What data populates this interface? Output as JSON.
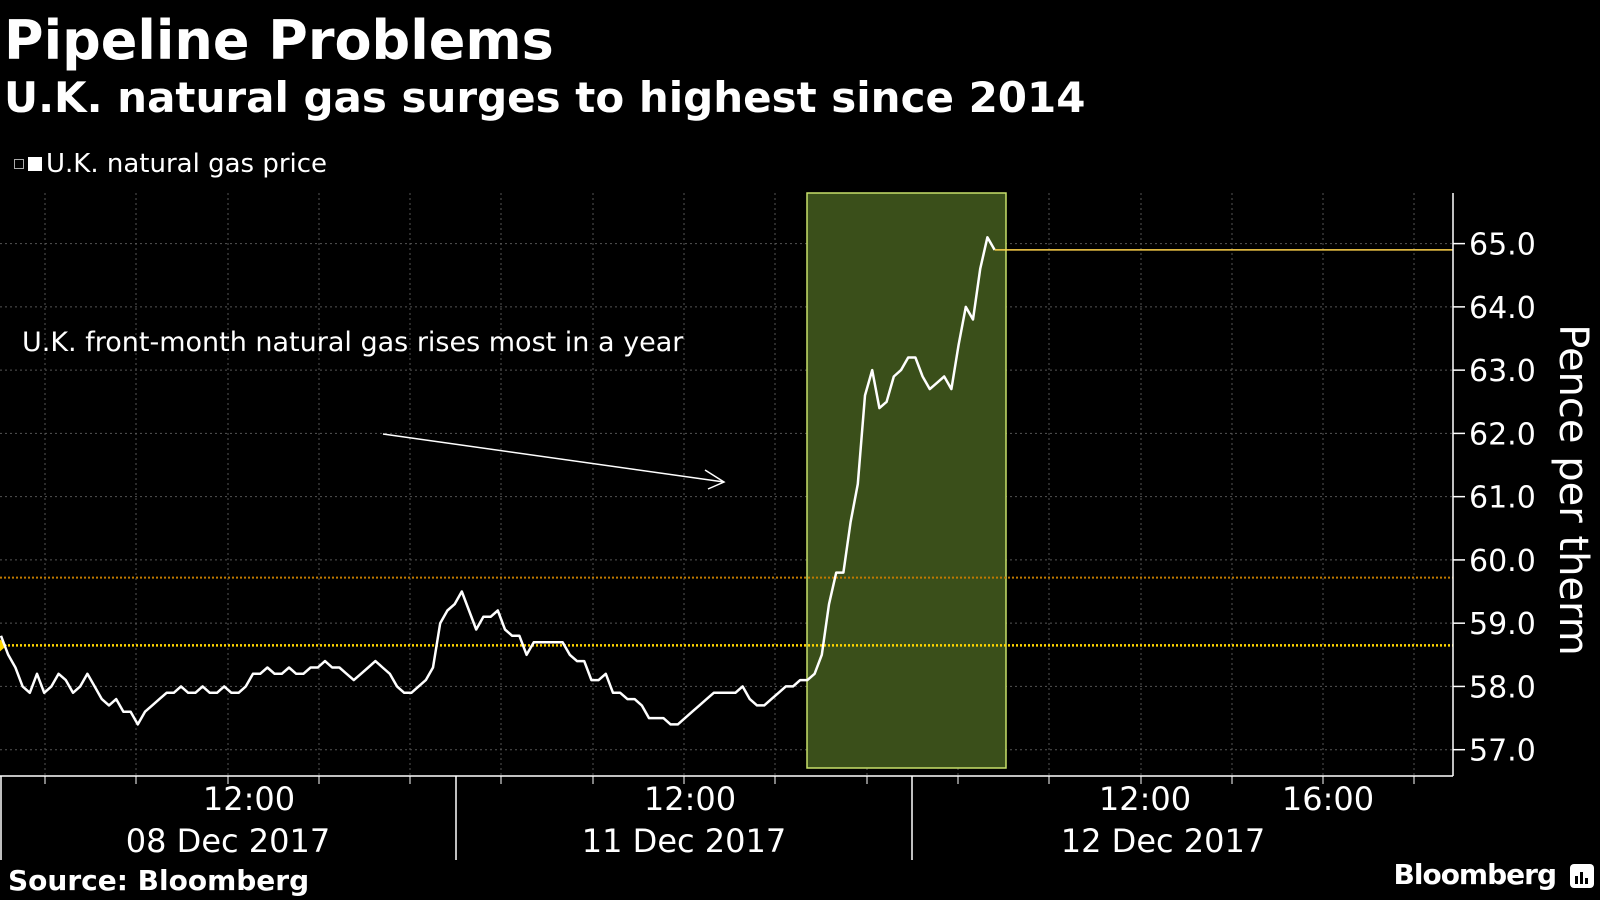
{
  "header": {
    "title": "Pipeline Problems",
    "subtitle": "U.K. natural gas surges to highest since 2014"
  },
  "legend": {
    "label": "U.K. natural gas price"
  },
  "footer": {
    "source": "Source: Bloomberg",
    "brand": "Bloomberg"
  },
  "colors": {
    "background": "#000000",
    "line": "#ffffff",
    "highlight_fill": "#3a4f1a",
    "highlight_border": "#c8e06a",
    "last_value": "#ffd24a",
    "reference_dotted": "#ffd600",
    "reference_dotted_2": "#c07a00",
    "grid": "#555555"
  },
  "chart_data": {
    "type": "line",
    "title": "Pipeline Problems",
    "subtitle": "U.K. natural gas surges to highest since 2014",
    "ylabel": "Pence per therm",
    "ylim": [
      56.6,
      65.8
    ],
    "yticks": [
      "57.0",
      "58.0",
      "59.0",
      "60.0",
      "61.0",
      "62.0",
      "63.0",
      "64.0",
      "65.0"
    ],
    "x_time_labels": [
      "12:00",
      "12:00",
      "12:00",
      "16:00"
    ],
    "x_date_labels": [
      "08 Dec 2017",
      "11 Dec 2017",
      "12 Dec 2017"
    ],
    "annotation": "U.K. front-month natural gas rises most in a year",
    "highlight": "12 Dec 2017",
    "last_value": 64.9,
    "reference_lines": [
      58.65,
      59.72
    ],
    "grid": true,
    "series": [
      {
        "name": "U.K. natural gas price",
        "points": [
          [
            0,
            58.8
          ],
          [
            3,
            58.5
          ],
          [
            6,
            58.3
          ],
          [
            9,
            58
          ],
          [
            12,
            57.9
          ],
          [
            15,
            58.2
          ],
          [
            18,
            57.9
          ],
          [
            21,
            58
          ],
          [
            24,
            58.2
          ],
          [
            27,
            58.1
          ],
          [
            30,
            57.9
          ],
          [
            33,
            58
          ],
          [
            36,
            58.2
          ],
          [
            39,
            58
          ],
          [
            42,
            57.8
          ],
          [
            45,
            57.7
          ],
          [
            48,
            57.8
          ],
          [
            51,
            57.6
          ],
          [
            54,
            57.6
          ],
          [
            57,
            57.4
          ],
          [
            60,
            57.6
          ],
          [
            63,
            57.7
          ],
          [
            66,
            57.8
          ],
          [
            69,
            57.9
          ],
          [
            72,
            57.9
          ],
          [
            75,
            58
          ],
          [
            78,
            57.9
          ],
          [
            81,
            57.9
          ],
          [
            84,
            58
          ],
          [
            87,
            57.9
          ],
          [
            90,
            57.9
          ],
          [
            93,
            58
          ],
          [
            96,
            57.9
          ],
          [
            99,
            57.9
          ],
          [
            102,
            58.0
          ],
          [
            105,
            58.2
          ],
          [
            108,
            58.2
          ],
          [
            111,
            58.3
          ],
          [
            114,
            58.2
          ],
          [
            117,
            58.2
          ],
          [
            120,
            58.3
          ],
          [
            123,
            58.2
          ],
          [
            126,
            58.2
          ],
          [
            129,
            58.3
          ],
          [
            132,
            58.3
          ],
          [
            135,
            58.4
          ],
          [
            138,
            58.3
          ],
          [
            141,
            58.3
          ],
          [
            144,
            58.2
          ],
          [
            147,
            58.1
          ],
          [
            150,
            58.2
          ],
          [
            153,
            58.3
          ],
          [
            156,
            58.4
          ],
          [
            159,
            58.3
          ],
          [
            162,
            58.2
          ],
          [
            165,
            58.0
          ],
          [
            168,
            57.9
          ],
          [
            171,
            57.9
          ],
          [
            174,
            58.0
          ],
          [
            177,
            58.1
          ],
          [
            180,
            58.3
          ],
          [
            183,
            59
          ],
          [
            186,
            59.2
          ],
          [
            189,
            59.3
          ],
          [
            192,
            59.5
          ],
          [
            195,
            59.2
          ],
          [
            198,
            58.9
          ],
          [
            201,
            59.1
          ],
          [
            204,
            59.1
          ],
          [
            207,
            59.2
          ],
          [
            210,
            58.9
          ],
          [
            213,
            58.8
          ],
          [
            216,
            58.8
          ],
          [
            219,
            58.5
          ],
          [
            222,
            58.7
          ],
          [
            225,
            58.7
          ],
          [
            228,
            58.7
          ],
          [
            231,
            58.7
          ],
          [
            234,
            58.7
          ],
          [
            237,
            58.5
          ],
          [
            240,
            58.4
          ],
          [
            243,
            58.4
          ],
          [
            246,
            58.1
          ],
          [
            249,
            58.1
          ],
          [
            252,
            58.2
          ],
          [
            255,
            57.9
          ],
          [
            258,
            57.9
          ],
          [
            261,
            57.8
          ],
          [
            264,
            57.8
          ],
          [
            267,
            57.7
          ],
          [
            270,
            57.5
          ],
          [
            273,
            57.5
          ],
          [
            276,
            57.5
          ],
          [
            279,
            57.4
          ],
          [
            282,
            57.4
          ],
          [
            285,
            57.5
          ],
          [
            288,
            57.6
          ],
          [
            291,
            57.7
          ],
          [
            294,
            57.8
          ],
          [
            297,
            57.9
          ],
          [
            300,
            57.9
          ],
          [
            303,
            57.9
          ],
          [
            306,
            57.9
          ],
          [
            309,
            58
          ],
          [
            312,
            57.8
          ],
          [
            315,
            57.7
          ],
          [
            318,
            57.7
          ],
          [
            321,
            57.8
          ],
          [
            324,
            57.9
          ],
          [
            327,
            58
          ],
          [
            330,
            58
          ],
          [
            333,
            58.1
          ],
          [
            336,
            58.1
          ],
          [
            339,
            58.2
          ],
          [
            342,
            58.5
          ],
          [
            345,
            59.3
          ],
          [
            348,
            59.8
          ],
          [
            351,
            59.8
          ],
          [
            354,
            60.6
          ],
          [
            357,
            61.2
          ],
          [
            360,
            62.6
          ],
          [
            363,
            63
          ],
          [
            366,
            62.4
          ],
          [
            369,
            62.5
          ],
          [
            372,
            62.9
          ],
          [
            375,
            63
          ],
          [
            378,
            63.2
          ],
          [
            381,
            63.2
          ],
          [
            384,
            62.9
          ],
          [
            387,
            62.7
          ],
          [
            390,
            62.8
          ],
          [
            393,
            62.9
          ],
          [
            396,
            62.7
          ],
          [
            399,
            63.4
          ],
          [
            402,
            64.0
          ],
          [
            405,
            63.8
          ],
          [
            408,
            64.6
          ],
          [
            411,
            65.1
          ],
          [
            414,
            64.9
          ]
        ]
      }
    ]
  }
}
